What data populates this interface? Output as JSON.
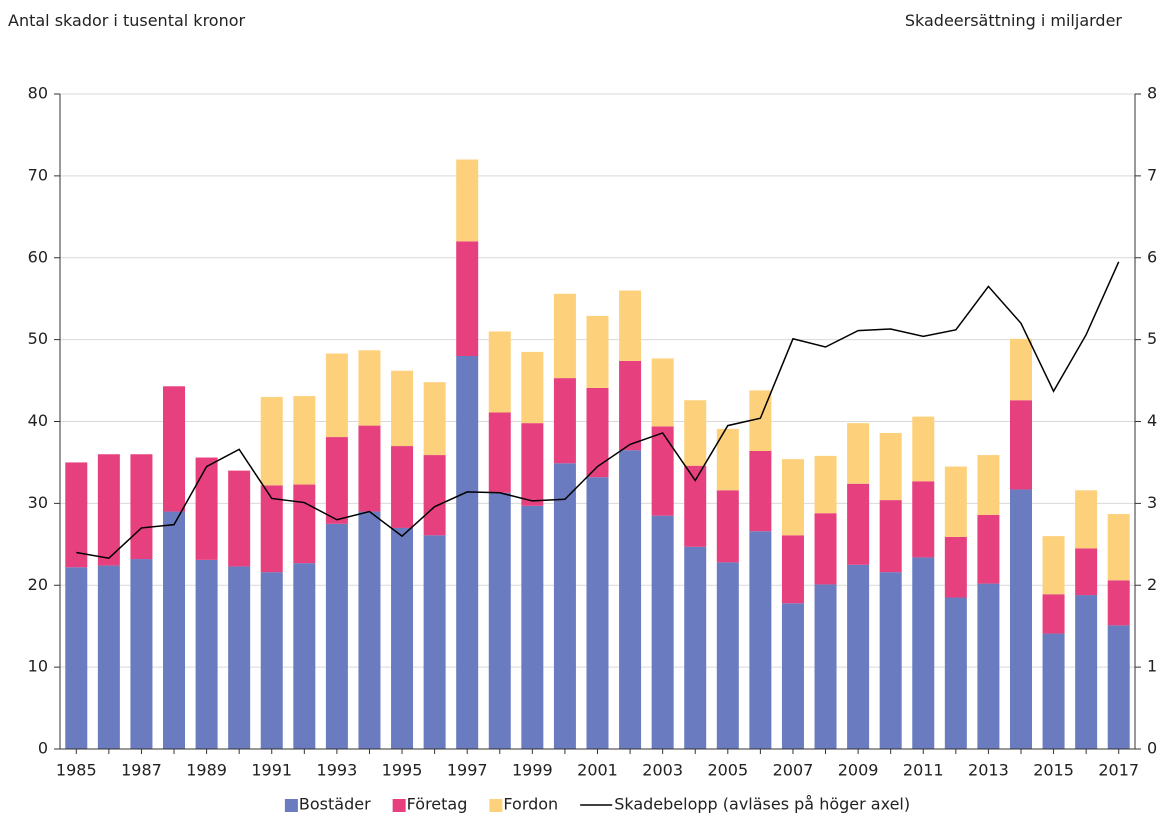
{
  "chart_data": {
    "type": "bar",
    "y_label": "Antal skador i tusental kronor",
    "y2_label": "Skadeersättning i miljarder",
    "categories": [
      "1985",
      null,
      "1987",
      null,
      "1989",
      null,
      "1991",
      null,
      "1993",
      null,
      "1995",
      null,
      "1997",
      null,
      "1999",
      null,
      "2001",
      null,
      "2003",
      null,
      "2005",
      null,
      "2007",
      null,
      "2009",
      null,
      "2011",
      null,
      "2013",
      null,
      "2015",
      null,
      "2017"
    ],
    "stacked": true,
    "series": [
      {
        "name": "Bostäder",
        "color": "#6a7bbf",
        "values": [
          22.2,
          22.4,
          23.2,
          29,
          23.1,
          22.3,
          21.6,
          22.7,
          27.5,
          29,
          27,
          26.1,
          48,
          31.3,
          29.7,
          34.9,
          33.2,
          36.5,
          28.5,
          24.7,
          22.8,
          26.6,
          17.8,
          20.1,
          22.5,
          21.6,
          23.4,
          18.5,
          20.2,
          31.7,
          14.1,
          18.8,
          15.1
        ]
      },
      {
        "name": "Företag",
        "color": "#e6407f",
        "values": [
          12.8,
          13.6,
          12.8,
          15.3,
          12.5,
          11.7,
          10.6,
          9.6,
          10.6,
          10.5,
          10,
          9.8,
          14,
          9.8,
          10.1,
          10.4,
          10.9,
          10.9,
          10.9,
          9.9,
          8.8,
          9.8,
          8.3,
          8.7,
          9.9,
          8.8,
          9.3,
          7.4,
          8.4,
          10.9,
          4.8,
          5.7,
          5.5
        ]
      },
      {
        "name": "Fordon",
        "color": "#fdd17b",
        "values": [
          0,
          0,
          0,
          0,
          0,
          0,
          10.8,
          10.8,
          10.2,
          9.2,
          9.2,
          8.9,
          10,
          9.9,
          8.7,
          10.3,
          8.8,
          8.6,
          8.3,
          8,
          7.5,
          7.4,
          9.3,
          7,
          7.4,
          8.2,
          7.9,
          8.6,
          7.3,
          7.5,
          7.1,
          7.1,
          8.1
        ]
      },
      {
        "name": "Skadebelopp (avläses på höger axel)",
        "type": "line",
        "axis": "y2",
        "color": "#000000",
        "values": [
          2.4,
          2.33,
          2.7,
          2.74,
          3.45,
          3.66,
          3.06,
          3.01,
          2.8,
          2.9,
          2.6,
          2.96,
          3.14,
          3.13,
          3.03,
          3.05,
          3.45,
          3.72,
          3.86,
          3.28,
          3.95,
          4.04,
          5.01,
          4.91,
          5.11,
          5.13,
          5.04,
          5.12,
          5.65,
          5.2,
          4.37,
          5.06,
          5.95
        ]
      }
    ],
    "ylim": [
      0,
      80
    ],
    "yticks": [
      0,
      10,
      20,
      30,
      40,
      50,
      60,
      70,
      80
    ],
    "y2lim": [
      0,
      8
    ],
    "y2ticks": [
      0,
      1,
      2,
      3,
      4,
      5,
      6,
      7,
      8
    ],
    "grid": true,
    "legend": "bottom"
  }
}
